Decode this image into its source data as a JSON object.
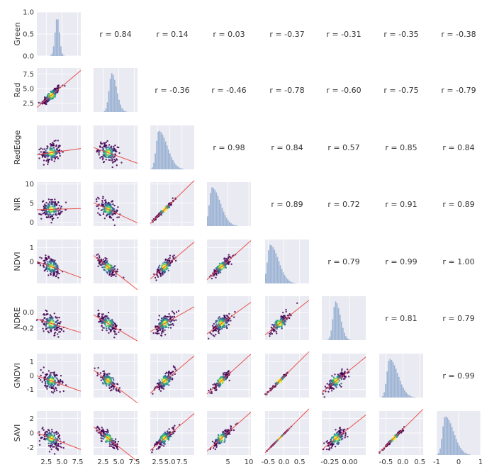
{
  "chart_data": {
    "type": "pairplot",
    "variables": [
      "Green",
      "Red",
      "RedEdge",
      "NIR",
      "NDVI",
      "NDRE",
      "GNDVI",
      "SAVI"
    ],
    "correlations": [
      {
        "row": 0,
        "col": 1,
        "label": "r = 0.84"
      },
      {
        "row": 0,
        "col": 2,
        "label": "r = 0.14"
      },
      {
        "row": 0,
        "col": 3,
        "label": "r = 0.03"
      },
      {
        "row": 0,
        "col": 4,
        "label": "r = -0.37"
      },
      {
        "row": 0,
        "col": 5,
        "label": "r = -0.31"
      },
      {
        "row": 0,
        "col": 6,
        "label": "r = -0.35"
      },
      {
        "row": 0,
        "col": 7,
        "label": "r = -0.38"
      },
      {
        "row": 1,
        "col": 2,
        "label": "r = -0.36"
      },
      {
        "row": 1,
        "col": 3,
        "label": "r = -0.46"
      },
      {
        "row": 1,
        "col": 4,
        "label": "r = -0.78"
      },
      {
        "row": 1,
        "col": 5,
        "label": "r = -0.60"
      },
      {
        "row": 1,
        "col": 6,
        "label": "r = -0.75"
      },
      {
        "row": 1,
        "col": 7,
        "label": "r = -0.79"
      },
      {
        "row": 2,
        "col": 3,
        "label": "r = 0.98"
      },
      {
        "row": 2,
        "col": 4,
        "label": "r = 0.84"
      },
      {
        "row": 2,
        "col": 5,
        "label": "r = 0.57"
      },
      {
        "row": 2,
        "col": 6,
        "label": "r = 0.85"
      },
      {
        "row": 2,
        "col": 7,
        "label": "r = 0.84"
      },
      {
        "row": 3,
        "col": 4,
        "label": "r = 0.89"
      },
      {
        "row": 3,
        "col": 5,
        "label": "r = 0.72"
      },
      {
        "row": 3,
        "col": 6,
        "label": "r = 0.91"
      },
      {
        "row": 3,
        "col": 7,
        "label": "r = 0.89"
      },
      {
        "row": 4,
        "col": 5,
        "label": "r = 0.79"
      },
      {
        "row": 4,
        "col": 6,
        "label": "r = 0.99"
      },
      {
        "row": 4,
        "col": 7,
        "label": "r = 1.00"
      },
      {
        "row": 5,
        "col": 6,
        "label": "r = 0.81"
      },
      {
        "row": 5,
        "col": 7,
        "label": "r = 0.79"
      },
      {
        "row": 6,
        "col": 7,
        "label": "r = 0.99"
      }
    ],
    "x_axes": [
      {
        "label": "Green",
        "ticks": [
          {
            "v": 2.5,
            "t": "2.5"
          },
          {
            "v": 5.0,
            "t": "5.0"
          },
          {
            "v": 7.5,
            "t": "7.5"
          }
        ],
        "range": [
          1.0,
          8.0
        ]
      },
      {
        "label": "Red",
        "ticks": [
          {
            "v": 2.5,
            "t": "2.5"
          },
          {
            "v": 5.0,
            "t": "5.0"
          },
          {
            "v": 7.5,
            "t": "7.5"
          }
        ],
        "range": [
          1.0,
          8.0
        ]
      },
      {
        "label": "RedEdge",
        "ticks": [
          {
            "v": 2.5,
            "t": "2.5"
          },
          {
            "v": 5.0,
            "t": "5.0"
          },
          {
            "v": 7.5,
            "t": "7.5"
          }
        ],
        "range": [
          1.0,
          10.0
        ]
      },
      {
        "label": "NIR",
        "ticks": [
          {
            "v": 5,
            "t": "5"
          },
          {
            "v": 10,
            "t": "10"
          }
        ],
        "range": [
          0.0,
          10.5
        ]
      },
      {
        "label": "NDVI",
        "ticks": [
          {
            "v": -0.5,
            "t": "-0.5"
          },
          {
            "v": 0.0,
            "t": "0.0"
          },
          {
            "v": 0.5,
            "t": "0.5"
          }
        ],
        "range": [
          -0.6,
          0.8
        ]
      },
      {
        "label": "NDRE",
        "ticks": [
          {
            "v": -0.25,
            "t": "-0.25"
          },
          {
            "v": 0.0,
            "t": "0.00"
          }
        ],
        "range": [
          -0.35,
          0.2
        ]
      },
      {
        "label": "GNDVI",
        "ticks": [
          {
            "v": -0.5,
            "t": "-0.5"
          },
          {
            "v": 0.0,
            "t": "0.0"
          },
          {
            "v": 0.5,
            "t": "0.5"
          }
        ],
        "range": [
          -0.7,
          0.6
        ]
      },
      {
        "label": "SAVI",
        "ticks": [
          {
            "v": -1,
            "t": "-1"
          },
          {
            "v": 0,
            "t": "0"
          },
          {
            "v": 1,
            "t": "1"
          }
        ],
        "range": [
          -1.0,
          1.0
        ]
      }
    ],
    "y_axes": [
      {
        "label": "Green",
        "ticks": [
          {
            "v": 0.0,
            "t": "0.0"
          },
          {
            "v": 0.5,
            "t": "0.5"
          },
          {
            "v": 1.0,
            "t": "1.0"
          }
        ],
        "range": [
          0.0,
          1.0
        ]
      },
      {
        "label": "Red",
        "ticks": [
          {
            "v": 2.5,
            "t": "2.5"
          },
          {
            "v": 5.0,
            "t": "5.0"
          },
          {
            "v": 7.5,
            "t": "7.5"
          }
        ],
        "range": [
          1.0,
          8.5
        ]
      },
      {
        "label": "RedEdge",
        "ticks": [],
        "range": [
          1.0,
          10.0
        ]
      },
      {
        "label": "NIR",
        "ticks": [
          {
            "v": 0,
            "t": "0"
          },
          {
            "v": 5,
            "t": "5"
          },
          {
            "v": 10,
            "t": "10"
          }
        ],
        "range": [
          -1.0,
          10.5
        ]
      },
      {
        "label": "NDVI",
        "ticks": [
          {
            "v": 0,
            "t": "0"
          },
          {
            "v": 1,
            "t": "1"
          }
        ],
        "range": [
          -1.6,
          1.6
        ]
      },
      {
        "label": "NDRE",
        "ticks": [
          {
            "v": -0.2,
            "t": "-0.2"
          },
          {
            "v": 0.0,
            "t": "0.0"
          }
        ],
        "range": [
          -0.35,
          0.2
        ]
      },
      {
        "label": "GNDVI",
        "ticks": [
          {
            "v": -1,
            "t": "-1"
          },
          {
            "v": 0,
            "t": "0"
          },
          {
            "v": 1,
            "t": "1"
          }
        ],
        "range": [
          -1.6,
          1.6
        ]
      },
      {
        "label": "SAVI",
        "ticks": [
          {
            "v": -2,
            "t": "-2"
          },
          {
            "v": 0,
            "t": "0"
          },
          {
            "v": 2,
            "t": "2"
          }
        ],
        "range": [
          -3.0,
          3.0
        ]
      }
    ],
    "histogram_color": "#9db4d4",
    "regression_color": "#e8514b",
    "density_colormap": [
      "#440154",
      "#3b528b",
      "#21918c",
      "#5ec962",
      "#fde725"
    ],
    "panel_background": "#eaeaf2",
    "grid": true
  }
}
